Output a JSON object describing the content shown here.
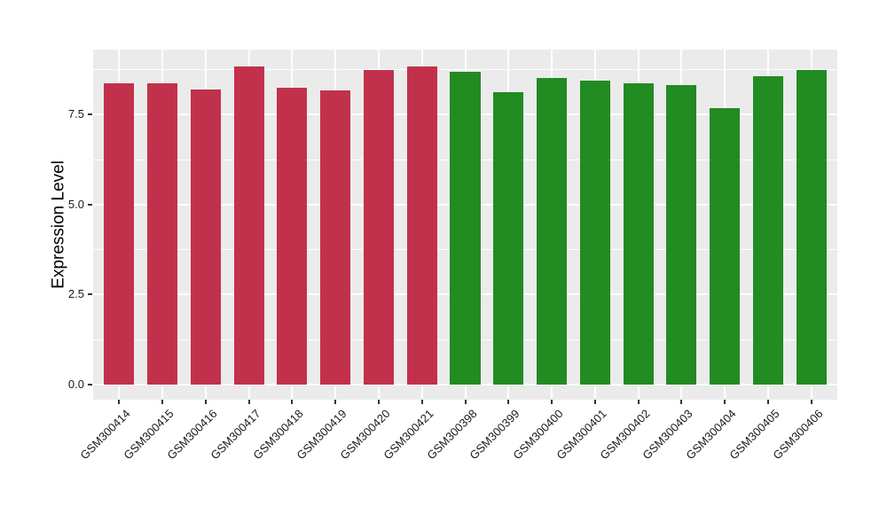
{
  "figure": {
    "background": "#FFFFFF"
  },
  "chart_data": {
    "type": "bar",
    "title": "",
    "xlabel": "",
    "ylabel": "Expression Level",
    "categories": [
      "GSM300414",
      "GSM300415",
      "GSM300416",
      "GSM300417",
      "GSM300418",
      "GSM300419",
      "GSM300420",
      "GSM300421",
      "GSM300398",
      "GSM300399",
      "GSM300400",
      "GSM300401",
      "GSM300402",
      "GSM300403",
      "GSM300404",
      "GSM300405",
      "GSM300406"
    ],
    "values": [
      8.37,
      8.37,
      8.2,
      8.84,
      8.26,
      8.18,
      8.75,
      8.83,
      8.7,
      8.12,
      8.53,
      8.46,
      8.37,
      8.33,
      7.69,
      8.56,
      8.74
    ],
    "groups": [
      0,
      0,
      0,
      0,
      0,
      0,
      0,
      0,
      1,
      1,
      1,
      1,
      1,
      1,
      1,
      1,
      1
    ],
    "group_colors": [
      "#C2314B",
      "#228B22"
    ],
    "ylim": [
      -0.42,
      9.31
    ],
    "yticks": [
      {
        "value": 0,
        "label": "0.0"
      },
      {
        "value": 2.5,
        "label": "2.5"
      },
      {
        "value": 5,
        "label": "5.0"
      },
      {
        "value": 7.5,
        "label": "7.5"
      }
    ],
    "minor_yticks": [
      1.25,
      3.75,
      6.25,
      8.75
    ],
    "grid": "major+minor horizontal, major vertical at category centers",
    "legend": "none",
    "panel_bg": "#EBEBEB",
    "grid_color": "#FFFFFF",
    "tick_mark_color": "#333333",
    "axis_text_color": "#1A1A1A",
    "bar_width_fraction": 0.7
  }
}
